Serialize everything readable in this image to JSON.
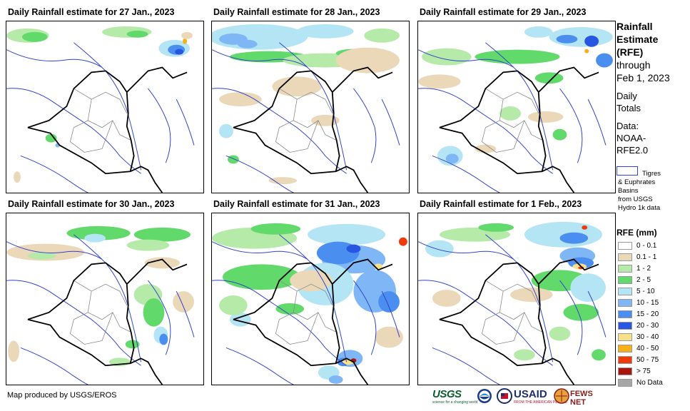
{
  "panels": [
    {
      "title": "Daily Rainfall estimate for 27 Jan., 2023"
    },
    {
      "title": "Daily Rainfall estimate for 28 Jan., 2023"
    },
    {
      "title": "Daily Rainfall estimate for 29 Jan., 2023"
    },
    {
      "title": "Daily Rainfall estimate for 30 Jan., 2023"
    },
    {
      "title": "Daily Rainfall estimate for 31 Jan., 2023"
    },
    {
      "title": "Daily Rainfall estimate for 1 Feb., 2023"
    }
  ],
  "side": {
    "title_line1": "Rainfall",
    "title_line2": "Estimate",
    "title_line3": "(RFE)",
    "through": "through",
    "through_date": "Feb 1, 2023",
    "daily": "Daily",
    "totals": "Totals",
    "data_label": "Data:",
    "data_src1": "NOAA-",
    "data_src2": "RFE2.0",
    "basin_line1": "Tigres",
    "basin_line2": "& Euphrates",
    "basin_line3": "Basins",
    "basin_line4": "from USGS",
    "basin_line5": "Hydro 1k data"
  },
  "legend": {
    "title": "RFE (mm)",
    "items": [
      {
        "label": "0 - 0.1",
        "color": "#ffffff"
      },
      {
        "label": "0.1 - 1",
        "color": "#ead8b8"
      },
      {
        "label": "1 - 2",
        "color": "#b5eaa9"
      },
      {
        "label": "2 - 5",
        "color": "#62d96b"
      },
      {
        "label": "5 - 10",
        "color": "#b3e5f5"
      },
      {
        "label": "10 - 15",
        "color": "#7fb6f5"
      },
      {
        "label": "15 - 20",
        "color": "#4a8ef0"
      },
      {
        "label": "20 - 30",
        "color": "#2757e0"
      },
      {
        "label": "30 - 40",
        "color": "#f7e18b"
      },
      {
        "label": "40 - 50",
        "color": "#f6b018"
      },
      {
        "label": "50 - 75",
        "color": "#ef3a0c"
      },
      {
        "label": "> 75",
        "color": "#a8150f"
      },
      {
        "label": "No Data",
        "color": "#a6a6a6"
      }
    ]
  },
  "footer": {
    "credit": "Map produced by USGS/EROS",
    "logo_usgs": "USGS",
    "logo_usgs_tag": "science for a changing world",
    "logo_usaid": "USAID",
    "logo_usaid_tag": "FROM THE AMERICAN PEOPLE",
    "logo_fews": "FEWS NET"
  }
}
